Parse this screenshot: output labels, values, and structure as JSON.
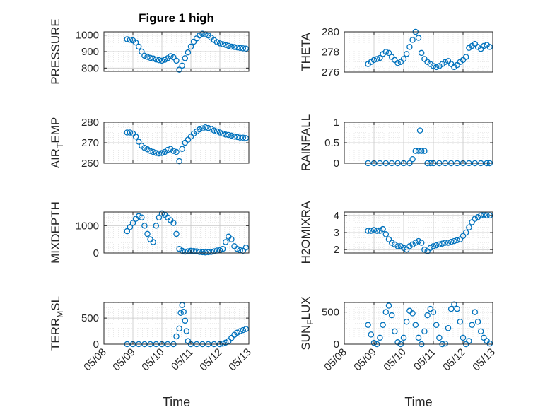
{
  "chart_data": [
    {
      "type": "scatter",
      "title": "Figure 1 high",
      "ylabel": "PRESSURE",
      "ylim": [
        780,
        1020
      ],
      "yticks": [
        800,
        900,
        1000
      ],
      "yticklabels": [
        "800",
        "900",
        "1000"
      ],
      "series": [
        {
          "x": [
            0.8,
            0.9,
            1.0,
            1.1,
            1.2,
            1.3,
            1.4,
            1.5,
            1.6,
            1.7,
            1.8,
            1.9,
            2.0,
            2.1,
            2.2,
            2.3,
            2.4,
            2.5,
            2.6,
            2.7,
            2.8,
            2.9,
            3.0,
            3.1,
            3.2,
            3.3,
            3.4,
            3.5,
            3.6,
            3.7,
            3.8,
            3.9,
            4.0,
            4.1,
            4.2,
            4.3,
            4.4,
            4.5,
            4.6,
            4.7,
            4.8,
            4.9
          ],
          "y": [
            975,
            972,
            968,
            955,
            930,
            900,
            875,
            868,
            862,
            858,
            852,
            848,
            845,
            850,
            860,
            872,
            865,
            845,
            790,
            815,
            860,
            895,
            930,
            960,
            980,
            998,
            1008,
            1005,
            998,
            985,
            970,
            958,
            950,
            945,
            940,
            935,
            930,
            928,
            925,
            922,
            920,
            918
          ]
        }
      ]
    },
    {
      "type": "scatter",
      "ylabel": "THETA",
      "ylim": [
        276,
        280
      ],
      "yticks": [
        276,
        278,
        280
      ],
      "yticklabels": [
        "276",
        "278",
        "280"
      ],
      "series": [
        {
          "x": [
            0.8,
            0.9,
            1.0,
            1.1,
            1.2,
            1.3,
            1.4,
            1.5,
            1.6,
            1.7,
            1.8,
            1.9,
            2.0,
            2.1,
            2.2,
            2.3,
            2.4,
            2.5,
            2.6,
            2.7,
            2.8,
            2.9,
            3.0,
            3.1,
            3.2,
            3.3,
            3.4,
            3.5,
            3.6,
            3.7,
            3.8,
            3.9,
            4.0,
            4.1,
            4.2,
            4.3,
            4.4,
            4.5,
            4.6,
            4.7,
            4.8,
            4.9
          ],
          "y": [
            276.8,
            277.0,
            277.2,
            277.3,
            277.4,
            277.8,
            278.0,
            277.9,
            277.5,
            277.2,
            276.9,
            277.0,
            277.3,
            277.8,
            278.5,
            279.2,
            280.0,
            279.4,
            277.9,
            277.3,
            277.0,
            276.8,
            276.6,
            276.5,
            276.6,
            276.8,
            277.0,
            277.1,
            276.8,
            276.5,
            276.7,
            277.0,
            277.2,
            277.5,
            278.4,
            278.6,
            278.8,
            278.5,
            278.3,
            278.6,
            278.7,
            278.5
          ]
        }
      ]
    },
    {
      "type": "scatter",
      "ylabel": "AIR_TEMP",
      "ylim": [
        260,
        280
      ],
      "yticks": [
        260,
        270,
        280
      ],
      "yticklabels": [
        "260",
        "270",
        "280"
      ],
      "series": [
        {
          "x": [
            0.8,
            0.9,
            1.0,
            1.1,
            1.2,
            1.3,
            1.4,
            1.5,
            1.6,
            1.7,
            1.8,
            1.9,
            2.0,
            2.1,
            2.2,
            2.3,
            2.4,
            2.5,
            2.6,
            2.7,
            2.8,
            2.9,
            3.0,
            3.1,
            3.2,
            3.3,
            3.4,
            3.5,
            3.6,
            3.7,
            3.8,
            3.9,
            4.0,
            4.1,
            4.2,
            4.3,
            4.4,
            4.5,
            4.6,
            4.7,
            4.8,
            4.9
          ],
          "y": [
            275.0,
            275.0,
            274.5,
            273.0,
            270.5,
            268.5,
            267.5,
            266.8,
            266.0,
            265.5,
            265.0,
            264.8,
            265.0,
            265.5,
            266.5,
            267.0,
            266.0,
            265.5,
            261.0,
            267.0,
            270.0,
            271.5,
            273.0,
            274.5,
            275.5,
            276.5,
            277.0,
            277.5,
            277.2,
            276.8,
            276.0,
            275.5,
            275.0,
            274.5,
            274.0,
            273.8,
            273.5,
            273.0,
            272.8,
            272.5,
            272.5,
            272.3
          ]
        }
      ]
    },
    {
      "type": "scatter",
      "ylabel": "RAINFALL",
      "ylim": [
        0,
        1
      ],
      "yticks": [
        0,
        0.5,
        1
      ],
      "yticklabels": [
        "0",
        "0.5",
        "1"
      ],
      "series": [
        {
          "x": [
            0.8,
            1.0,
            1.2,
            1.4,
            1.6,
            1.8,
            2.0,
            2.2,
            2.3,
            2.4,
            2.5,
            2.55,
            2.6,
            2.7,
            2.8,
            2.9,
            3.0,
            3.2,
            3.4,
            3.6,
            3.8,
            4.0,
            4.2,
            4.4,
            4.6,
            4.8,
            4.9
          ],
          "y": [
            0,
            0,
            0,
            0,
            0,
            0,
            0,
            0,
            0.1,
            0.3,
            0.3,
            0.8,
            0.3,
            0.3,
            0,
            0,
            0,
            0,
            0,
            0,
            0,
            0,
            0,
            0,
            0,
            0,
            0
          ]
        }
      ]
    },
    {
      "type": "scatter",
      "ylabel": "MIXDEPTH",
      "ylim": [
        0,
        1500
      ],
      "yticks": [
        0,
        1000
      ],
      "yticklabels": [
        "0",
        "1000"
      ],
      "series": [
        {
          "x": [
            0.8,
            0.9,
            1.0,
            1.1,
            1.2,
            1.3,
            1.4,
            1.5,
            1.6,
            1.7,
            1.8,
            1.9,
            2.0,
            2.1,
            2.2,
            2.3,
            2.4,
            2.5,
            2.6,
            2.7,
            2.8,
            2.9,
            3.0,
            3.1,
            3.2,
            3.3,
            3.4,
            3.5,
            3.6,
            3.7,
            3.8,
            3.9,
            4.0,
            4.1,
            4.2,
            4.3,
            4.4,
            4.5,
            4.6,
            4.7,
            4.8,
            4.9
          ],
          "y": [
            800,
            950,
            1100,
            1250,
            1350,
            1300,
            1000,
            700,
            500,
            400,
            1000,
            1300,
            1450,
            1400,
            1300,
            1200,
            1100,
            700,
            150,
            80,
            50,
            60,
            80,
            70,
            60,
            40,
            30,
            20,
            30,
            40,
            60,
            90,
            100,
            150,
            400,
            600,
            500,
            250,
            150,
            100,
            80,
            200
          ]
        }
      ]
    },
    {
      "type": "scatter",
      "ylabel": "H2OMIXRA",
      "ylim": [
        1.8,
        4.2
      ],
      "yticks": [
        2,
        3,
        4
      ],
      "yticklabels": [
        "2",
        "3",
        "4"
      ],
      "series": [
        {
          "x": [
            0.8,
            0.9,
            1.0,
            1.1,
            1.2,
            1.3,
            1.4,
            1.5,
            1.6,
            1.7,
            1.8,
            1.9,
            2.0,
            2.1,
            2.2,
            2.3,
            2.4,
            2.5,
            2.6,
            2.7,
            2.8,
            2.9,
            3.0,
            3.1,
            3.2,
            3.3,
            3.4,
            3.5,
            3.6,
            3.7,
            3.8,
            3.9,
            4.0,
            4.1,
            4.2,
            4.3,
            4.4,
            4.5,
            4.6,
            4.7,
            4.8,
            4.9
          ],
          "y": [
            3.1,
            3.1,
            3.15,
            3.1,
            3.1,
            3.2,
            2.9,
            2.6,
            2.4,
            2.3,
            2.2,
            2.2,
            2.1,
            2.0,
            2.2,
            2.3,
            2.4,
            2.5,
            2.4,
            2.0,
            1.9,
            2.1,
            2.2,
            2.25,
            2.3,
            2.35,
            2.4,
            2.4,
            2.45,
            2.5,
            2.55,
            2.6,
            2.8,
            3.0,
            3.3,
            3.6,
            3.8,
            3.9,
            4.0,
            4.05,
            4.0,
            4.0
          ]
        }
      ]
    },
    {
      "type": "scatter",
      "ylabel": "TERR_MSL",
      "ylim": [
        0,
        800
      ],
      "yticks": [
        0,
        500
      ],
      "yticklabels": [
        "0",
        "500"
      ],
      "series": [
        {
          "x": [
            0.8,
            1.0,
            1.2,
            1.4,
            1.6,
            1.8,
            2.0,
            2.2,
            2.4,
            2.5,
            2.6,
            2.65,
            2.7,
            2.75,
            2.8,
            2.85,
            2.9,
            3.0,
            3.2,
            3.4,
            3.6,
            3.8,
            4.0,
            4.1,
            4.2,
            4.3,
            4.4,
            4.5,
            4.6,
            4.7,
            4.8,
            4.9
          ],
          "y": [
            0,
            0,
            0,
            0,
            0,
            0,
            0,
            0,
            0,
            150,
            300,
            600,
            750,
            620,
            450,
            250,
            60,
            0,
            0,
            0,
            0,
            0,
            0,
            10,
            30,
            60,
            120,
            180,
            220,
            250,
            270,
            290
          ]
        }
      ]
    },
    {
      "type": "scatter",
      "ylabel": "SUN_FLUX",
      "ylim": [
        0,
        650
      ],
      "yticks": [
        0,
        500
      ],
      "yticklabels": [
        "0",
        "500"
      ],
      "series": [
        {
          "x": [
            0.8,
            0.9,
            1.0,
            1.1,
            1.2,
            1.3,
            1.4,
            1.5,
            1.6,
            1.7,
            1.8,
            1.9,
            2.0,
            2.1,
            2.2,
            2.3,
            2.4,
            2.5,
            2.6,
            2.7,
            2.8,
            2.9,
            3.0,
            3.1,
            3.2,
            3.3,
            3.4,
            3.5,
            3.6,
            3.7,
            3.8,
            3.9,
            4.0,
            4.1,
            4.2,
            4.3,
            4.4,
            4.5,
            4.6,
            4.7,
            4.8,
            4.9
          ],
          "y": [
            300,
            150,
            20,
            0,
            100,
            300,
            500,
            600,
            450,
            200,
            30,
            0,
            100,
            350,
            520,
            480,
            300,
            100,
            0,
            200,
            450,
            550,
            500,
            300,
            100,
            0,
            10,
            250,
            550,
            620,
            550,
            350,
            100,
            0,
            50,
            300,
            500,
            350,
            200,
            100,
            50,
            10
          ]
        }
      ]
    }
  ],
  "x_axis": {
    "range": [
      0,
      5
    ],
    "ticks": [
      0,
      1,
      2,
      3,
      4,
      5
    ],
    "ticklabels": [
      "05/08",
      "05/09",
      "05/10",
      "05/11",
      "05/12",
      "05/13"
    ],
    "label": "Time"
  },
  "colors": {
    "marker": "#0072bd",
    "axis": "#262626",
    "grid": "#d9d9d9"
  }
}
